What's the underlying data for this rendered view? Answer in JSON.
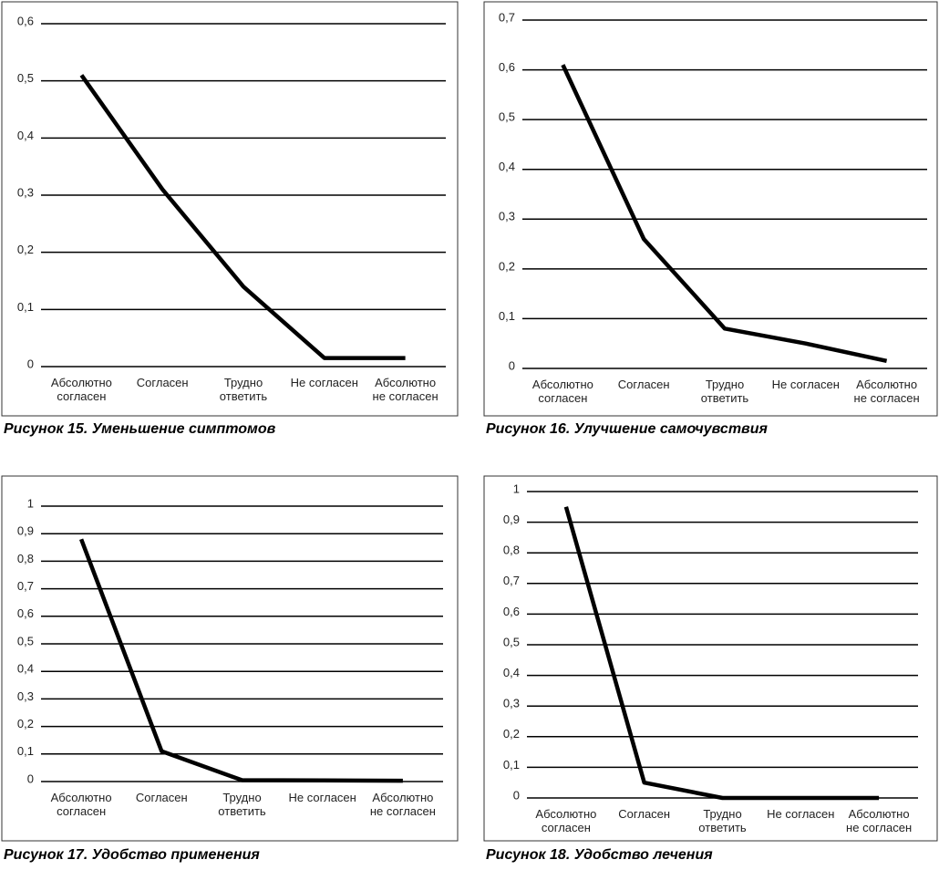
{
  "chart_data": [
    {
      "type": "line",
      "title": "Рисунок 15. Уменьшение симптомов",
      "categories": [
        "Абсолютно\nсогласен",
        "Согласен",
        "Трудно\nответить",
        "Не согласен",
        "Абсолютно\nне согласен"
      ],
      "values": [
        0.51,
        0.31,
        0.14,
        0.015,
        0.015
      ],
      "color": "#000000",
      "ylim": [
        0,
        0.6
      ],
      "yticks": [
        0,
        {
          "value": 0.1,
          "label": "0,1"
        },
        {
          "value": 0.2,
          "label": "0,2"
        },
        {
          "value": 0.3,
          "label": "0,3"
        },
        {
          "value": 0.4,
          "label": "0,4"
        },
        {
          "value": 0.5,
          "label": "0,5"
        },
        {
          "value": 0.6,
          "label": "0,6"
        }
      ],
      "grid": true
    },
    {
      "type": "line",
      "title": "Рисунок 16. Улучшение самочувствия",
      "categories": [
        "Абсолютно\nсогласен",
        "Согласен",
        "Трудно\nответить",
        "Не согласен",
        "Абсолютно\nне согласен"
      ],
      "values": [
        0.61,
        0.26,
        0.08,
        0.05,
        0.015
      ],
      "color": "#000000",
      "ylim": [
        0,
        0.7
      ],
      "yticks": [
        0,
        {
          "value": 0.1,
          "label": "0,1"
        },
        {
          "value": 0.2,
          "label": "0,2"
        },
        {
          "value": 0.3,
          "label": "0,3"
        },
        {
          "value": 0.4,
          "label": "0,4"
        },
        {
          "value": 0.5,
          "label": "0,5"
        },
        {
          "value": 0.6,
          "label": "0,6"
        },
        {
          "value": 0.7,
          "label": "0,7"
        }
      ],
      "grid": true
    },
    {
      "type": "line",
      "title": "Рисунок 17. Удобство применения",
      "categories": [
        "Абсолютно\nсогласен",
        "Согласен",
        "Трудно\nответить",
        "Не согласен",
        "Абсолютно\nне согласен"
      ],
      "values": [
        0.88,
        0.11,
        0.005,
        0.004,
        0.003
      ],
      "color": "#000000",
      "ylim": [
        0,
        1
      ],
      "yticks": [
        0,
        {
          "value": 0.1,
          "label": "0,1"
        },
        {
          "value": 0.2,
          "label": "0,2"
        },
        {
          "value": 0.3,
          "label": "0,3"
        },
        {
          "value": 0.4,
          "label": "0,4"
        },
        {
          "value": 0.5,
          "label": "0,5"
        },
        {
          "value": 0.6,
          "label": "0,6"
        },
        {
          "value": 0.7,
          "label": "0,7"
        },
        {
          "value": 0.8,
          "label": "0,8"
        },
        {
          "value": 0.9,
          "label": "0,9"
        },
        1
      ],
      "grid": true
    },
    {
      "type": "line",
      "title": "Рисунок 18. Удобство лечения",
      "categories": [
        "Абсолютно\nсогласен",
        "Согласен",
        "Трудно\nответить",
        "Не согласен",
        "Абсолютно\nне согласен"
      ],
      "values": [
        0.95,
        0.05,
        0,
        0,
        0
      ],
      "color": "#000000",
      "ylim": [
        0,
        1
      ],
      "yticks": [
        0,
        {
          "value": 0.1,
          "label": "0,1"
        },
        {
          "value": 0.2,
          "label": "0,2"
        },
        {
          "value": 0.3,
          "label": "0,3"
        },
        {
          "value": 0.4,
          "label": "0,4"
        },
        {
          "value": 0.5,
          "label": "0,5"
        },
        {
          "value": 0.6,
          "label": "0,6"
        },
        {
          "value": 0.7,
          "label": "0,7"
        },
        {
          "value": 0.8,
          "label": "0,8"
        },
        {
          "value": 0.9,
          "label": "0,9"
        },
        1
      ],
      "grid": true
    }
  ]
}
